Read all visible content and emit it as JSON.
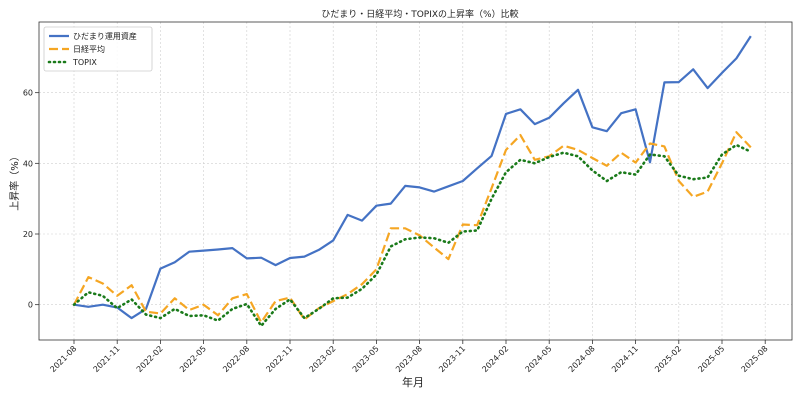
{
  "chart_data": {
    "type": "line",
    "title": "ひだまり・日経平均・TOPIXの上昇率（%）比較",
    "xlabel": "年月",
    "ylabel": "上昇率（%）",
    "ylim": [
      -10,
      80
    ],
    "y_ticks": [
      0,
      20,
      40,
      60
    ],
    "x_ticks": [
      "2021-08",
      "2021-11",
      "2022-02",
      "2022-05",
      "2022-08",
      "2022-11",
      "2023-02",
      "2023-05",
      "2023-08",
      "2023-11",
      "2024-02",
      "2024-05",
      "2024-08",
      "2024-11",
      "2025-02",
      "2025-05",
      "2025-08"
    ],
    "grid": true,
    "legend_position": "top-left",
    "x": [
      "2021-08",
      "2021-09",
      "2021-10",
      "2021-11",
      "2021-12",
      "2022-01",
      "2022-02",
      "2022-03",
      "2022-04",
      "2022-05",
      "2022-06",
      "2022-07",
      "2022-08",
      "2022-09",
      "2022-10",
      "2022-11",
      "2022-12",
      "2023-01",
      "2023-02",
      "2023-03",
      "2023-04",
      "2023-05",
      "2023-06",
      "2023-07",
      "2023-08",
      "2023-09",
      "2023-10",
      "2023-11",
      "2023-12",
      "2024-01",
      "2024-02",
      "2024-03",
      "2024-04",
      "2024-05",
      "2024-06",
      "2024-07",
      "2024-08",
      "2024-09",
      "2024-10",
      "2024-11",
      "2024-12",
      "2025-01",
      "2025-02",
      "2025-03",
      "2025-04",
      "2025-05",
      "2025-06",
      "2025-07"
    ],
    "series": [
      {
        "name": "ひだまり運用資産",
        "color": "#4472C4",
        "style": "solid",
        "values": [
          0,
          -0.6,
          0,
          -0.8,
          -3.8,
          -1.2,
          10.2,
          12,
          15,
          15.3,
          15.6,
          16,
          13.1,
          13.3,
          11.2,
          13.2,
          13.6,
          15.5,
          18.2,
          25.4,
          23.8,
          28,
          28.6,
          33.6,
          33.2,
          32,
          33.5,
          35,
          38.6,
          42.1,
          54,
          55.3,
          51.1,
          52.9,
          57,
          60.8,
          50.2,
          49.1,
          54.2,
          55.3,
          40.3,
          62.9,
          63,
          66.6,
          61.3,
          65.6,
          69.7,
          76
        ]
      },
      {
        "name": "日経平均",
        "color": "#F5A623",
        "style": "dashed",
        "values": [
          0,
          7.8,
          6,
          2.5,
          5.5,
          -2,
          -2.5,
          1.8,
          -1.5,
          0,
          -3,
          1.8,
          3,
          -5,
          1,
          2,
          -4.2,
          -1,
          1,
          3,
          5.8,
          10,
          21.6,
          21.6,
          19.6,
          16.2,
          12.9,
          22.7,
          22.5,
          33,
          43.8,
          48,
          41,
          42,
          45,
          43.8,
          41.5,
          39.3,
          43,
          40.2,
          45.6,
          44.8,
          35,
          30.5,
          32,
          40,
          48.8,
          44.5
        ]
      },
      {
        "name": "TOPIX",
        "color": "#1A7A1A",
        "style": "dotted",
        "values": [
          0,
          3.5,
          2.5,
          -1,
          1.5,
          -2.8,
          -3.8,
          -1.2,
          -3.2,
          -3,
          -4.5,
          -1.2,
          0.2,
          -6,
          -1.2,
          1.5,
          -3.8,
          -1.2,
          1.8,
          2,
          4.5,
          8.5,
          16.5,
          18.5,
          19,
          18.8,
          17.5,
          20.7,
          21,
          30,
          37.5,
          41,
          40,
          41.8,
          43,
          42,
          38,
          35,
          37.5,
          36.8,
          42.5,
          42,
          36.5,
          35.5,
          36,
          42.5,
          45.2,
          43.3
        ]
      }
    ]
  }
}
